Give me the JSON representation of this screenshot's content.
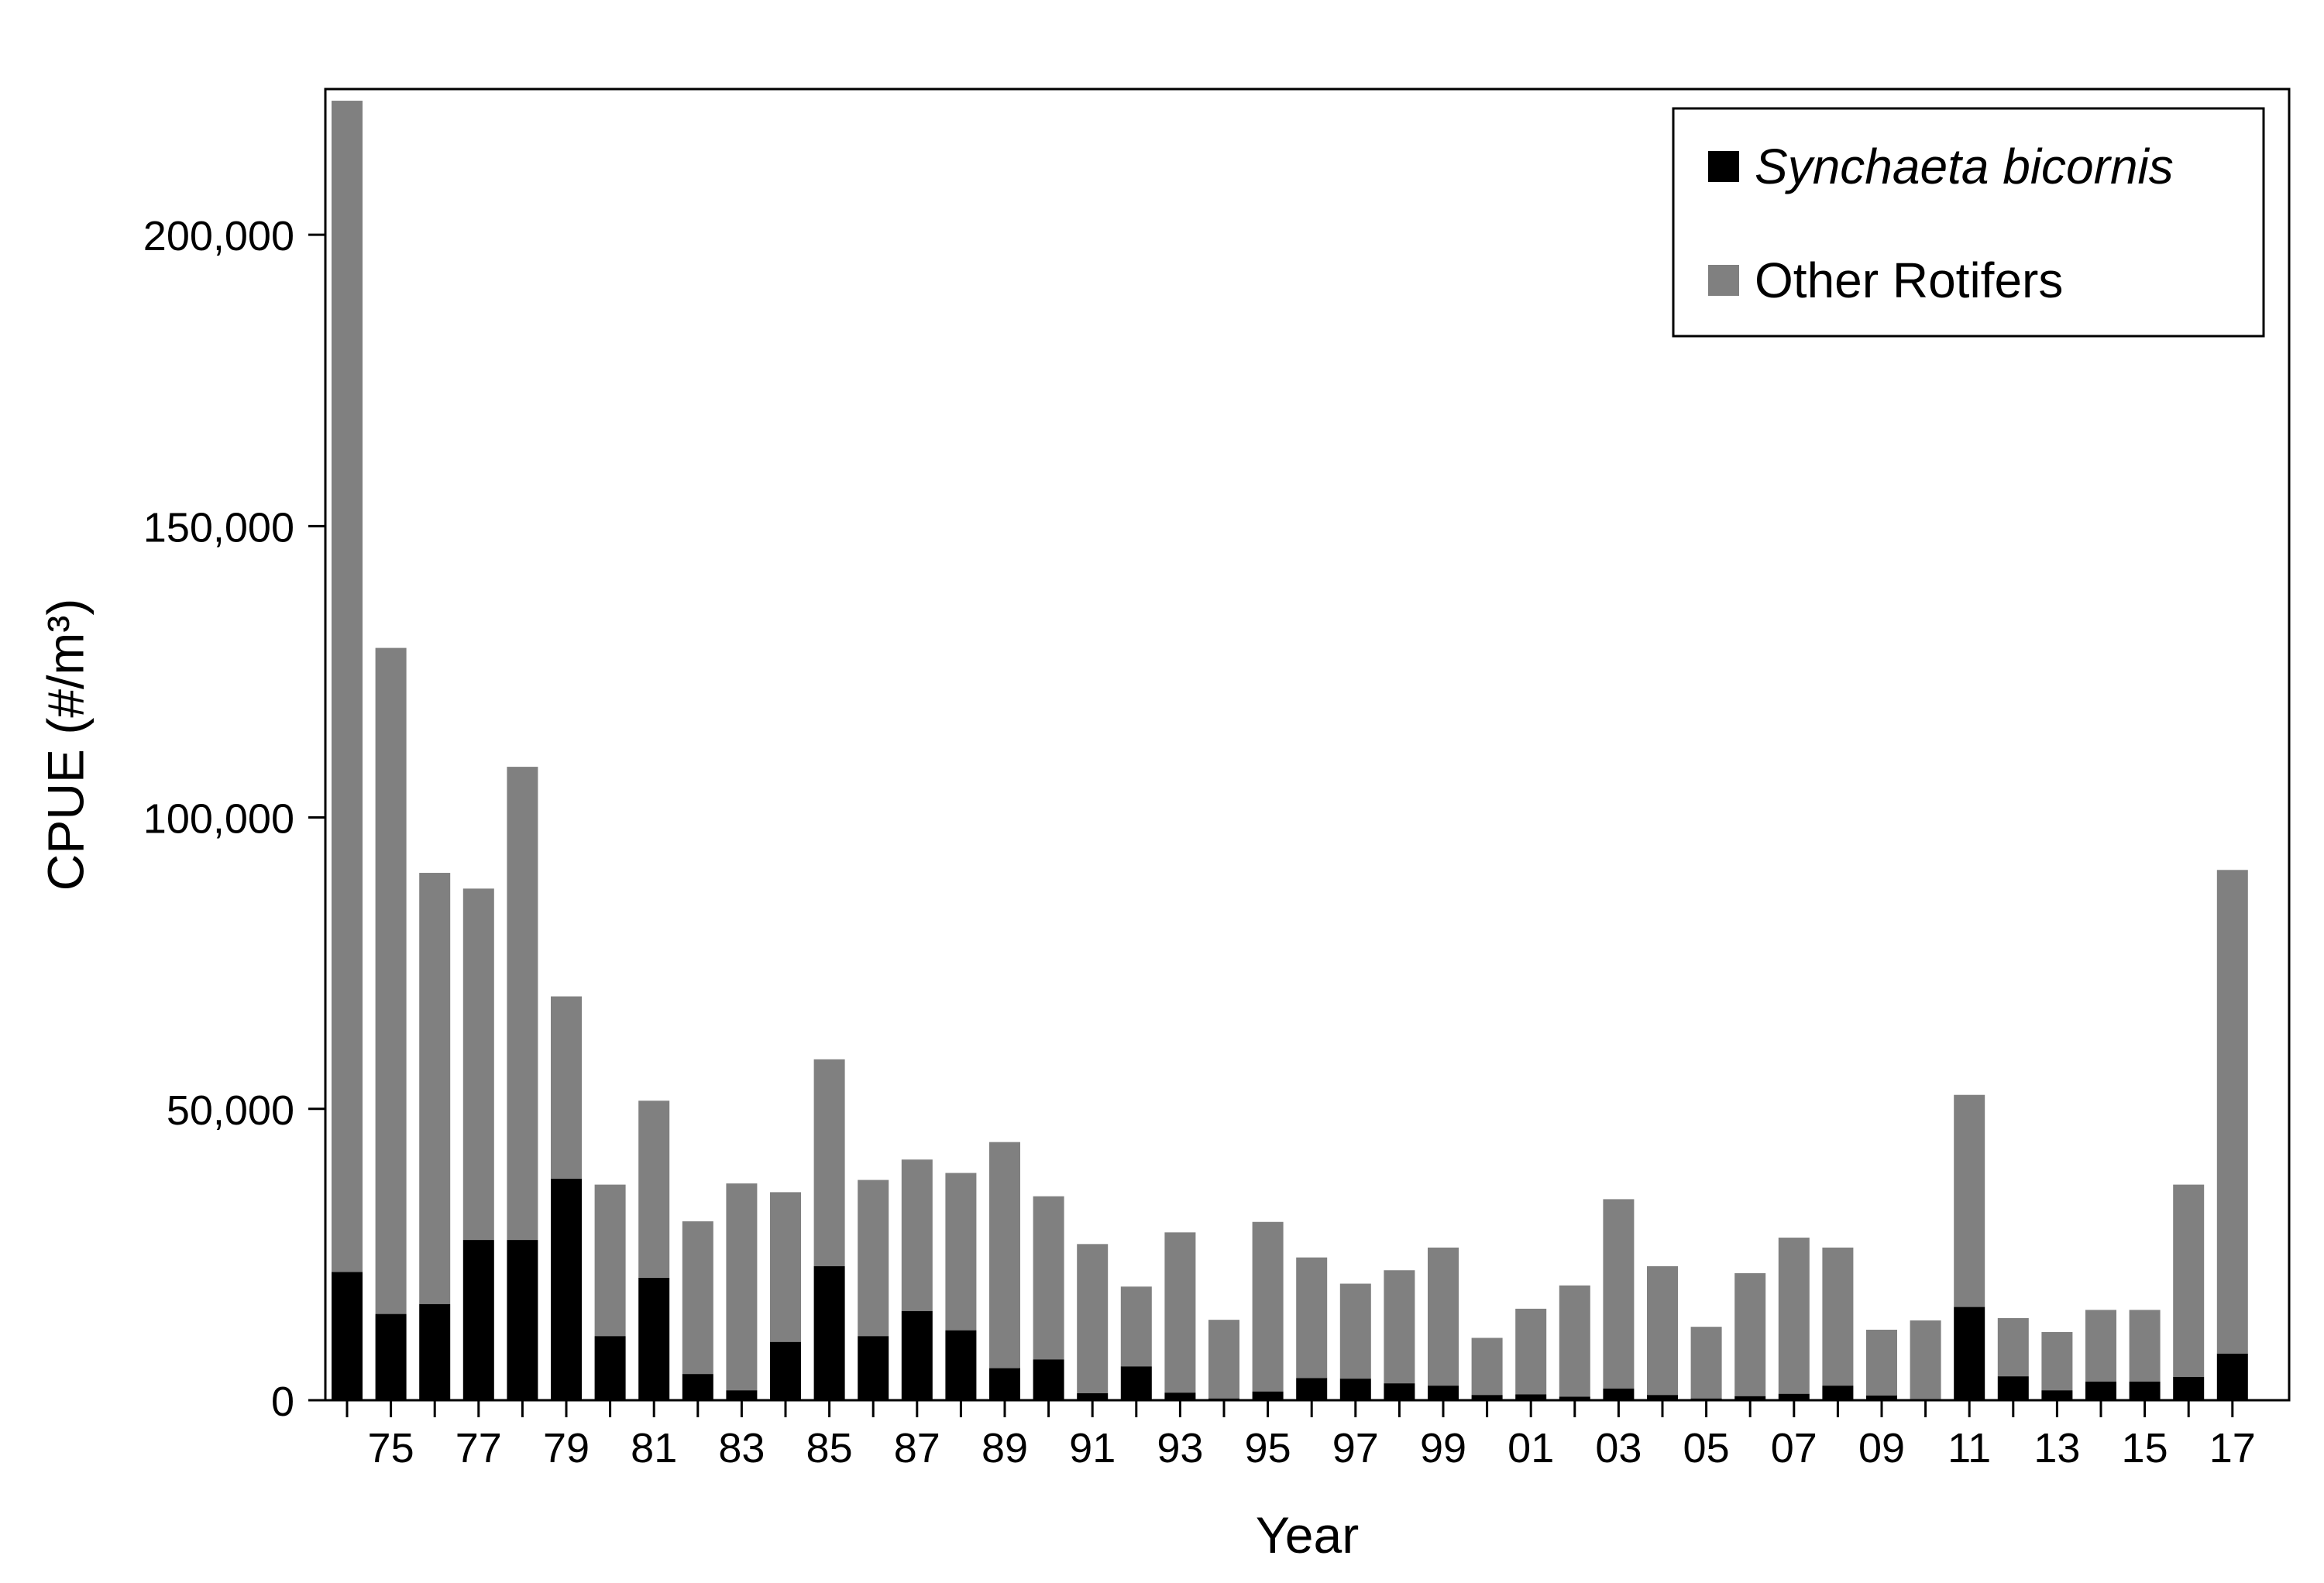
{
  "chart_data": {
    "type": "bar",
    "stacked": true,
    "xlabel": "Year",
    "ylabel": "CPUE (#/m³)",
    "ylim": [
      0,
      225000
    ],
    "yticks": [
      0,
      50000,
      100000,
      150000,
      200000
    ],
    "ytick_labels": [
      "0",
      "50,000",
      "100,000",
      "150,000",
      "200,000"
    ],
    "grid": false,
    "legend_position": "top-right",
    "categories": [
      "74",
      "75",
      "76",
      "77",
      "78",
      "79",
      "80",
      "81",
      "82",
      "83",
      "84",
      "85",
      "86",
      "87",
      "88",
      "89",
      "90",
      "91",
      "92",
      "93",
      "94",
      "95",
      "96",
      "97",
      "98",
      "99",
      "00",
      "01",
      "02",
      "03",
      "04",
      "05",
      "06",
      "07",
      "08",
      "09",
      "10",
      "11",
      "12",
      "13",
      "14",
      "15",
      "16",
      "17"
    ],
    "x_tick_labels": [
      "",
      "75",
      "",
      "77",
      "",
      "79",
      "",
      "81",
      "",
      "83",
      "",
      "85",
      "",
      "87",
      "",
      "89",
      "",
      "91",
      "",
      "93",
      "",
      "95",
      "",
      "97",
      "",
      "99",
      "",
      "01",
      "",
      "03",
      "",
      "05",
      "",
      "07",
      "",
      "09",
      "",
      "11",
      "",
      "13",
      "",
      "15",
      "",
      "17"
    ],
    "series": [
      {
        "name": "Synchaeta bicornis",
        "color": "#000000",
        "italic": true,
        "values": [
          22000,
          14800,
          16500,
          27500,
          27500,
          38000,
          11000,
          21000,
          4500,
          1700,
          10000,
          23000,
          11000,
          15300,
          12000,
          5500,
          7000,
          1200,
          5800,
          1300,
          300,
          1500,
          3800,
          3700,
          2900,
          2500,
          900,
          1000,
          600,
          2000,
          900,
          300,
          700,
          1100,
          2500,
          800,
          200,
          16000,
          4100,
          1700,
          3200,
          3200,
          4000,
          8000
        ]
      },
      {
        "name": "Other Rotifers",
        "color": "#808080",
        "italic": false,
        "values": [
          201000,
          114300,
          74000,
          60300,
          81200,
          31300,
          26000,
          30400,
          26200,
          35500,
          25700,
          35500,
          26800,
          26000,
          27000,
          38800,
          28000,
          25600,
          13700,
          27500,
          13500,
          29100,
          20700,
          16300,
          19400,
          23700,
          9800,
          14700,
          19100,
          32500,
          22100,
          12300,
          21100,
          26800,
          23700,
          11300,
          13500,
          36400,
          10000,
          10000,
          12300,
          12300,
          33000,
          83000
        ]
      }
    ]
  }
}
